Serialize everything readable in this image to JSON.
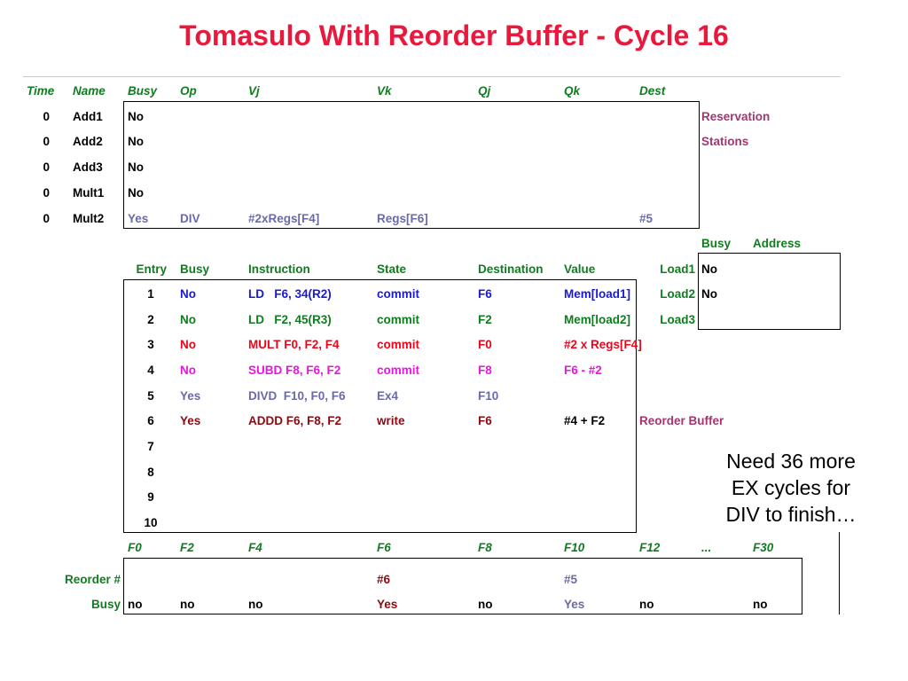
{
  "title": "Tomasulo With Reorder Buffer - Cycle 16",
  "rs": {
    "headers": [
      "Time",
      "Name",
      "Busy",
      "Op",
      "Vj",
      "Vk",
      "Qj",
      "Qk",
      "Dest"
    ],
    "rows": [
      {
        "time": "0",
        "name": "Add1",
        "busy": "No",
        "op": "",
        "vj": "",
        "vk": "",
        "qj": "",
        "qk": "",
        "dest": ""
      },
      {
        "time": "0",
        "name": "Add2",
        "busy": "No",
        "op": "",
        "vj": "",
        "vk": "",
        "qj": "",
        "qk": "",
        "dest": ""
      },
      {
        "time": "0",
        "name": "Add3",
        "busy": "No",
        "op": "",
        "vj": "",
        "vk": "",
        "qj": "",
        "qk": "",
        "dest": ""
      },
      {
        "time": "0",
        "name": "Mult1",
        "busy": "No",
        "op": "",
        "vj": "",
        "vk": "",
        "qj": "",
        "qk": "",
        "dest": ""
      },
      {
        "time": "0",
        "name": "Mult2",
        "busy": "Yes",
        "op": "DIV",
        "vj": "#2xRegs[F4]",
        "vk": "Regs[F6]",
        "qj": "",
        "qk": "",
        "dest": "#5"
      }
    ],
    "label_line1": "Reservation",
    "label_line2": "Stations"
  },
  "loads": {
    "headers": [
      "Busy",
      "Address"
    ],
    "rows": [
      {
        "name": "Load1",
        "busy": "No",
        "address": ""
      },
      {
        "name": "Load2",
        "busy": "No",
        "address": ""
      },
      {
        "name": "Load3",
        "busy": "",
        "address": ""
      }
    ]
  },
  "rob": {
    "headers": [
      "Entry",
      "Busy",
      "Instruction",
      "State",
      "Destination",
      "Value"
    ],
    "rows": [
      {
        "entry": "1",
        "busy": "No",
        "instruction": "LD   F6, 34(R2)",
        "state": "commit",
        "dest": "F6",
        "value": "Mem[load1]"
      },
      {
        "entry": "2",
        "busy": "No",
        "instruction": "LD   F2, 45(R3)",
        "state": "commit",
        "dest": "F2",
        "value": "Mem[load2]"
      },
      {
        "entry": "3",
        "busy": "No",
        "instruction": "MULT F0, F2, F4",
        "state": "commit",
        "dest": "F0",
        "value": "#2 x Regs[F4]"
      },
      {
        "entry": "4",
        "busy": "No",
        "instruction": "SUBD F8, F6, F2",
        "state": "commit",
        "dest": "F8",
        "value": "F6 - #2"
      },
      {
        "entry": "5",
        "busy": "Yes",
        "instruction": "DIVD  F10, F0, F6",
        "state": "Ex4",
        "dest": "F10",
        "value": ""
      },
      {
        "entry": "6",
        "busy": "Yes",
        "instruction": "ADDD F6, F8, F2",
        "state": "write",
        "dest": "F6",
        "value": "#4 + F2"
      },
      {
        "entry": "7",
        "busy": "",
        "instruction": "",
        "state": "",
        "dest": "",
        "value": ""
      },
      {
        "entry": "8",
        "busy": "",
        "instruction": "",
        "state": "",
        "dest": "",
        "value": ""
      },
      {
        "entry": "9",
        "busy": "",
        "instruction": "",
        "state": "",
        "dest": "",
        "value": ""
      },
      {
        "entry": "10",
        "busy": "",
        "instruction": "",
        "state": "",
        "dest": "",
        "value": ""
      }
    ],
    "label": "Reorder Buffer"
  },
  "regs": {
    "names": [
      "F0",
      "F2",
      "F4",
      "F6",
      "F8",
      "F10",
      "F12",
      "...",
      "F30"
    ],
    "reorder_label": "Reorder #",
    "reorder": [
      "",
      "",
      "",
      "#6",
      "",
      "#5",
      "",
      "",
      ""
    ],
    "busy_label": "Busy",
    "busy": [
      "no",
      "no",
      "no",
      "Yes",
      "no",
      "Yes",
      "no",
      "",
      "no"
    ]
  },
  "note": {
    "line1": "Need 36 more",
    "line2": "EX cycles for",
    "line3": "DIV to finish…"
  },
  "colors": {
    "title": "#e8193c",
    "header": "#0f7d1f",
    "label": "#a33670",
    "blue": "#1a1ad6",
    "red": "#e8071a",
    "magenta": "#ea14e0",
    "gray": "#6a6aa8",
    "dark_red": "#8b0a12"
  }
}
